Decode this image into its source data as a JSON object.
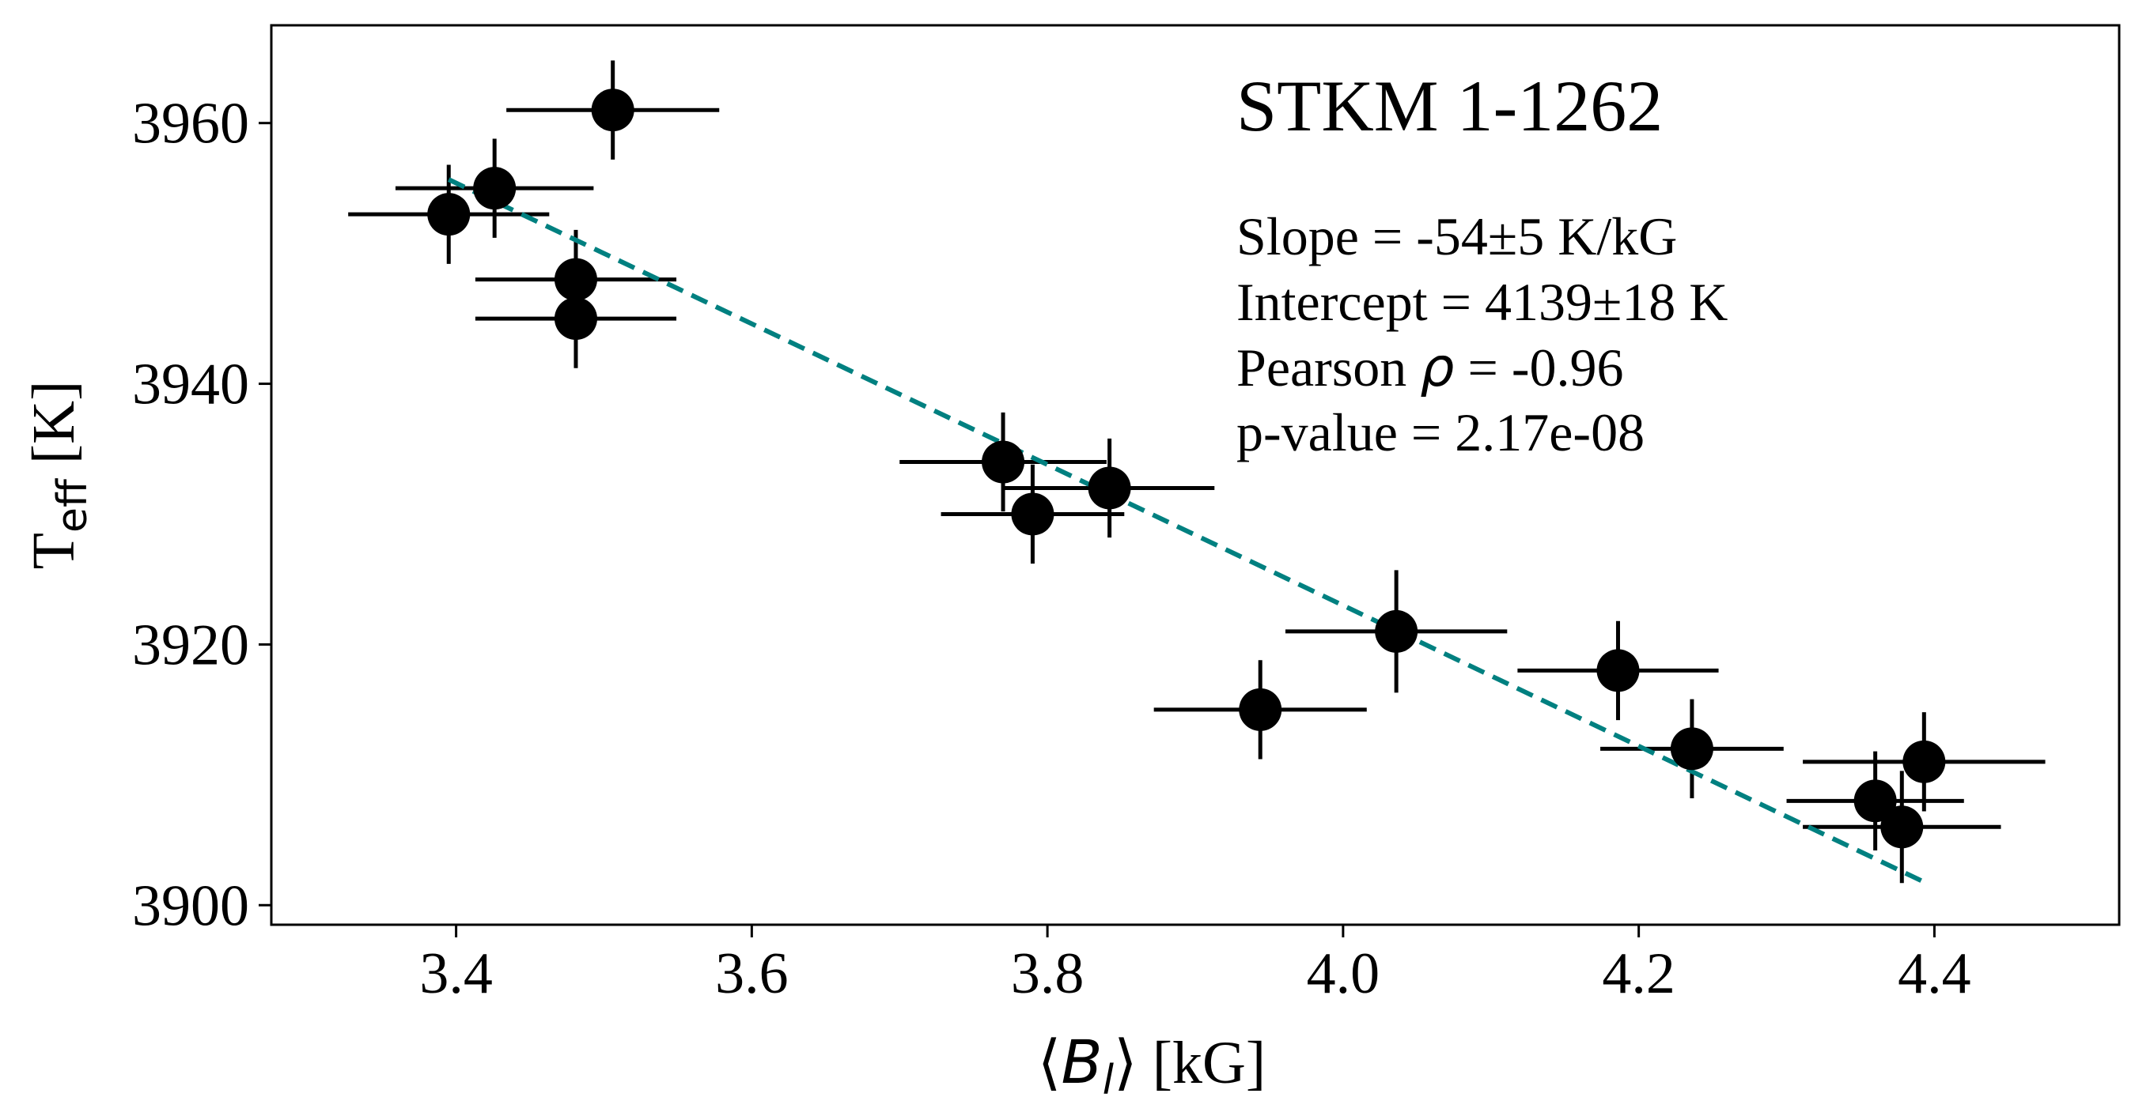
{
  "chart_data": {
    "type": "scatter",
    "title": "",
    "xlabel": "⟨B_l⟩ [kG]",
    "xlabel_parts": {
      "open": "⟨",
      "var": "B",
      "sub": "l",
      "close": "⟩",
      "unit": " [kG]"
    },
    "ylabel": "T_eff [K]",
    "ylabel_parts": {
      "base": "T",
      "sub": "eff",
      "unit": " [K]"
    },
    "xlim": [
      3.275,
      4.525
    ],
    "ylim": [
      3898.5,
      3967.5
    ],
    "xticks": [
      3.4,
      3.6,
      3.8,
      4.0,
      4.2,
      4.4
    ],
    "xtick_labels": [
      "3.4",
      "3.6",
      "3.8",
      "4.0",
      "4.2",
      "4.4"
    ],
    "yticks": [
      3900,
      3920,
      3940,
      3960
    ],
    "ytick_labels": [
      "3900",
      "3920",
      "3940",
      "3960"
    ],
    "grid": false,
    "series": [
      {
        "marker_color": "#000000",
        "points": [
          {
            "x": 3.395,
            "y": 3953,
            "xerr": 0.068,
            "yerr": 3.8
          },
          {
            "x": 3.426,
            "y": 3955,
            "xerr": 0.067,
            "yerr": 3.8
          },
          {
            "x": 3.506,
            "y": 3961,
            "xerr": 0.072,
            "yerr": 3.8
          },
          {
            "x": 3.481,
            "y": 3948,
            "xerr": 0.068,
            "yerr": 3.8
          },
          {
            "x": 3.481,
            "y": 3945,
            "xerr": 0.068,
            "yerr": 3.8
          },
          {
            "x": 3.77,
            "y": 3934,
            "xerr": 0.07,
            "yerr": 3.8
          },
          {
            "x": 3.79,
            "y": 3930,
            "xerr": 0.062,
            "yerr": 3.8
          },
          {
            "x": 3.842,
            "y": 3932,
            "xerr": 0.071,
            "yerr": 3.8
          },
          {
            "x": 3.944,
            "y": 3915,
            "xerr": 0.072,
            "yerr": 3.8
          },
          {
            "x": 4.036,
            "y": 3921,
            "xerr": 0.075,
            "yerr": 4.7
          },
          {
            "x": 4.186,
            "y": 3918,
            "xerr": 0.068,
            "yerr": 3.8
          },
          {
            "x": 4.236,
            "y": 3912,
            "xerr": 0.062,
            "yerr": 3.8
          },
          {
            "x": 4.36,
            "y": 3908,
            "xerr": 0.06,
            "yerr": 3.8
          },
          {
            "x": 4.378,
            "y": 3906,
            "xerr": 0.067,
            "yerr": 4.3
          },
          {
            "x": 4.393,
            "y": 3911,
            "xerr": 0.082,
            "yerr": 3.8
          }
        ]
      }
    ],
    "fit_line": {
      "style": "dashed",
      "color": "#008080",
      "slope": -54,
      "intercept": 4139,
      "x_range": [
        3.395,
        4.393
      ]
    },
    "annotations": {
      "title": "STKM 1-1262",
      "slope_text": "Slope = -54±5 K/kG",
      "intercept_text": "Intercept = 4139±18 K",
      "pearson_prefix": "Pearson ",
      "pearson_symbol": "ρ",
      "pearson_suffix": " = -0.96",
      "pvalue_text": "p-value = 2.17e-08"
    }
  }
}
